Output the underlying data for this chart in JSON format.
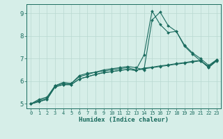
{
  "xlabel": "Humidex (Indice chaleur)",
  "ylabel": "",
  "xlim": [
    -0.5,
    23.5
  ],
  "ylim": [
    4.8,
    9.4
  ],
  "xticks": [
    0,
    1,
    2,
    3,
    4,
    5,
    6,
    7,
    8,
    9,
    10,
    11,
    12,
    13,
    14,
    15,
    16,
    17,
    18,
    19,
    20,
    21,
    22,
    23
  ],
  "yticks": [
    5,
    6,
    7,
    8,
    9
  ],
  "background_color": "#d6eee8",
  "line_color": "#1a6b5e",
  "grid_color": "#b8d8d0",
  "lines": [
    [
      5.0,
      5.2,
      5.3,
      5.8,
      5.9,
      5.9,
      6.2,
      6.3,
      6.4,
      6.45,
      6.5,
      6.55,
      6.6,
      6.5,
      7.15,
      9.1,
      8.5,
      8.15,
      8.2,
      7.55,
      7.2,
      6.9,
      6.65,
      6.95
    ],
    [
      5.0,
      5.15,
      5.25,
      5.8,
      5.95,
      5.9,
      6.25,
      6.35,
      6.4,
      6.5,
      6.55,
      6.6,
      6.65,
      6.6,
      6.5,
      8.7,
      9.05,
      8.45,
      8.2,
      7.6,
      7.25,
      7.0,
      6.7,
      6.95
    ],
    [
      5.0,
      5.1,
      5.2,
      5.75,
      5.85,
      5.85,
      6.1,
      6.2,
      6.3,
      6.38,
      6.42,
      6.48,
      6.52,
      6.48,
      6.55,
      6.6,
      6.65,
      6.7,
      6.75,
      6.8,
      6.85,
      6.9,
      6.6,
      6.9
    ],
    [
      5.0,
      5.1,
      5.2,
      5.75,
      5.85,
      5.85,
      6.1,
      6.2,
      6.3,
      6.38,
      6.42,
      6.48,
      6.52,
      6.48,
      6.58,
      6.62,
      6.68,
      6.72,
      6.78,
      6.82,
      6.88,
      6.92,
      6.62,
      6.92
    ]
  ]
}
